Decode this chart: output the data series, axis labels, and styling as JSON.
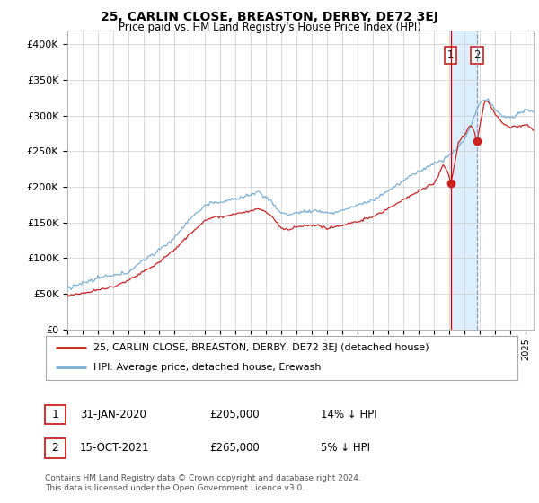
{
  "title": "25, CARLIN CLOSE, BREASTON, DERBY, DE72 3EJ",
  "subtitle": "Price paid vs. HM Land Registry's House Price Index (HPI)",
  "ylabel_ticks": [
    "£0",
    "£50K",
    "£100K",
    "£150K",
    "£200K",
    "£250K",
    "£300K",
    "£350K",
    "£400K"
  ],
  "ytick_values": [
    0,
    50000,
    100000,
    150000,
    200000,
    250000,
    300000,
    350000,
    400000
  ],
  "ylim": [
    0,
    420000
  ],
  "xlim_start": 1995.0,
  "xlim_end": 2025.5,
  "hpi_color": "#7bafd4",
  "price_color": "#cc2222",
  "transaction1_x": 2020.08,
  "transaction1_y": 205000,
  "transaction2_x": 2021.79,
  "transaction2_y": 265000,
  "shade_color": "#ddeeff",
  "legend_line1": "25, CARLIN CLOSE, BREASTON, DERBY, DE72 3EJ (detached house)",
  "legend_line2": "HPI: Average price, detached house, Erewash",
  "table_row1_date": "31-JAN-2020",
  "table_row1_price": "£205,000",
  "table_row1_hpi": "14% ↓ HPI",
  "table_row2_date": "15-OCT-2021",
  "table_row2_price": "£265,000",
  "table_row2_hpi": "5% ↓ HPI",
  "footnote": "Contains HM Land Registry data © Crown copyright and database right 2024.\nThis data is licensed under the Open Government Licence v3.0.",
  "background_color": "#ffffff",
  "grid_color": "#cccccc"
}
